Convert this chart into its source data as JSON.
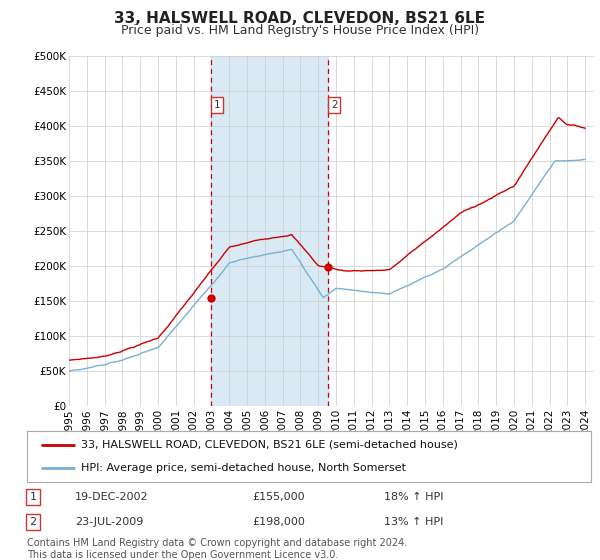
{
  "title": "33, HALSWELL ROAD, CLEVEDON, BS21 6LE",
  "subtitle": "Price paid vs. HM Land Registry's House Price Index (HPI)",
  "ylim": [
    0,
    500000
  ],
  "yticks": [
    0,
    50000,
    100000,
    150000,
    200000,
    250000,
    300000,
    350000,
    400000,
    450000,
    500000
  ],
  "ytick_labels": [
    "£0",
    "£50K",
    "£100K",
    "£150K",
    "£200K",
    "£250K",
    "£300K",
    "£350K",
    "£400K",
    "£450K",
    "£500K"
  ],
  "hpi_color": "#7ab0d4",
  "price_color": "#cc0000",
  "bg_color": "#ffffff",
  "shade_color": "#daeaf5",
  "grid_color": "#cccccc",
  "purchase1_date_num": 2002.97,
  "purchase1_price": 155000,
  "purchase2_date_num": 2009.56,
  "purchase2_price": 198000,
  "legend_label_price": "33, HALSWELL ROAD, CLEVEDON, BS21 6LE (semi-detached house)",
  "legend_label_hpi": "HPI: Average price, semi-detached house, North Somerset",
  "table_rows": [
    {
      "num": "1",
      "date": "19-DEC-2002",
      "price": "£155,000",
      "hpi": "18% ↑ HPI"
    },
    {
      "num": "2",
      "date": "23-JUL-2009",
      "price": "£198,000",
      "hpi": "13% ↑ HPI"
    }
  ],
  "footnote1": "Contains HM Land Registry data © Crown copyright and database right 2024.",
  "footnote2": "This data is licensed under the Open Government Licence v3.0.",
  "title_fontsize": 11,
  "subtitle_fontsize": 9,
  "tick_fontsize": 7.5,
  "legend_fontsize": 8,
  "table_fontsize": 8,
  "footnote_fontsize": 7
}
